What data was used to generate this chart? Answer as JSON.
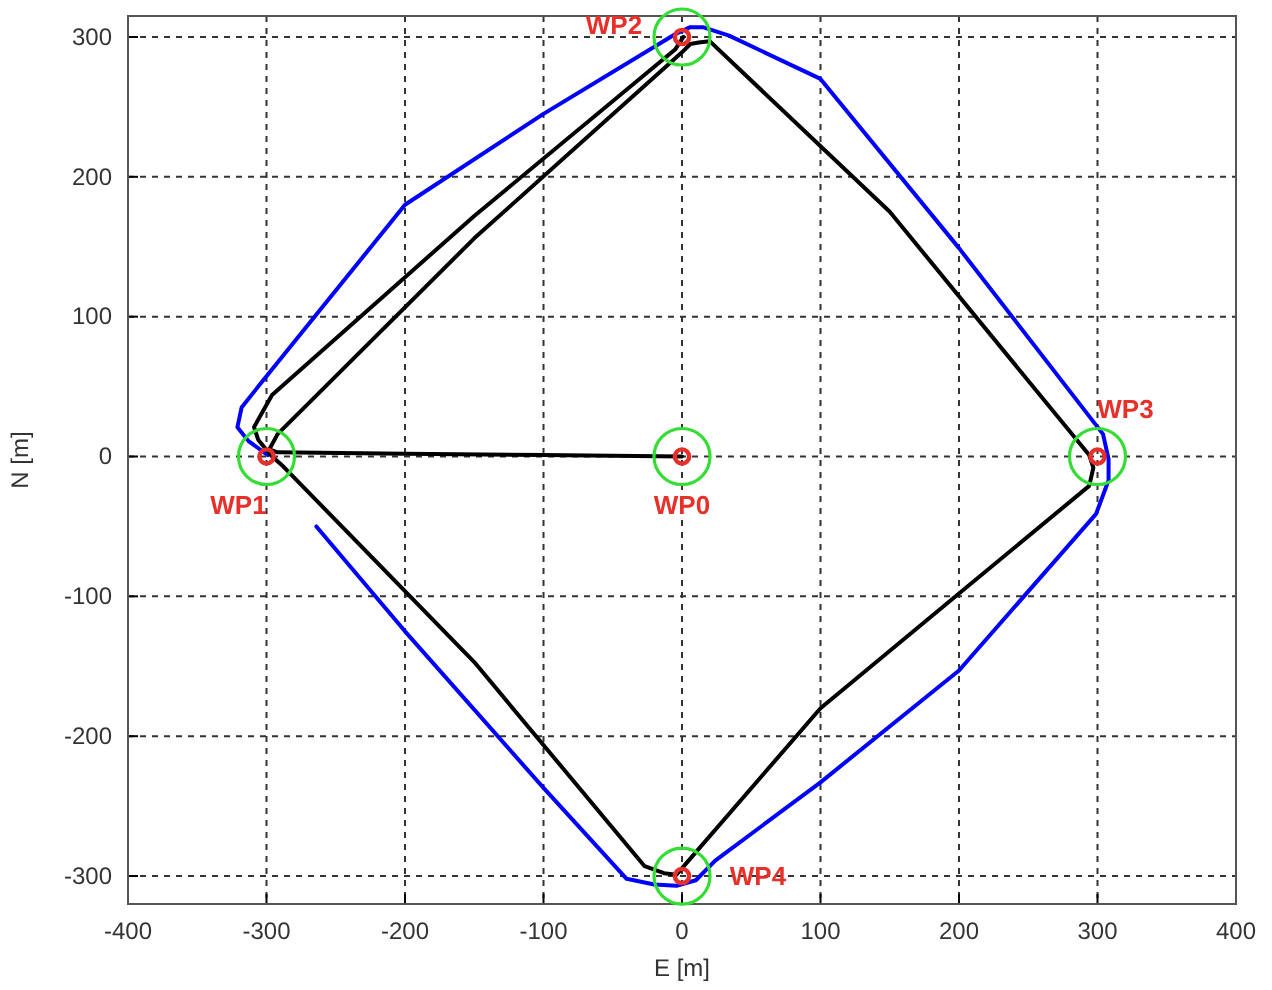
{
  "chart_data": {
    "type": "line",
    "xlabel": "E [m]",
    "ylabel": "N [m]",
    "xlim": [
      -400,
      400
    ],
    "ylim": [
      -320,
      315
    ],
    "xticks": [
      -400,
      -300,
      -200,
      -100,
      0,
      100,
      200,
      300,
      400
    ],
    "yticks": [
      -300,
      -200,
      -100,
      0,
      100,
      200,
      300
    ],
    "grid": true,
    "line_style": "solid",
    "series": [
      {
        "color": "#0000ff",
        "x": [
          -264,
          -200,
          -100,
          -40,
          -20,
          -4,
          10,
          24,
          100,
          200,
          299,
          308,
          308,
          304,
          200,
          100,
          34,
          15,
          6,
          -5,
          -100,
          -200,
          -306,
          -318,
          -321,
          -313,
          -299
        ],
        "values": [
          -50,
          -125,
          -237,
          -302,
          -306,
          -307,
          -303,
          -289,
          -233,
          -153,
          -41,
          -17,
          -2,
          16,
          149,
          270,
          301,
          307,
          307,
          302,
          245,
          180,
          50,
          35,
          21,
          11,
          1
        ]
      },
      {
        "color": "#000000",
        "x": [
          0,
          -100,
          -200,
          -292,
          -298,
          -292,
          -150,
          0,
          6,
          12,
          20,
          150,
          294,
          297,
          294,
          200,
          100,
          -4,
          -13,
          -27,
          -150,
          -288,
          -296,
          -306,
          -309,
          -296,
          -150,
          -5,
          1
        ],
        "values": [
          0,
          1,
          2,
          3,
          5,
          16,
          156,
          289,
          295,
          296,
          297,
          175,
          1,
          -8,
          -21,
          -98,
          -180,
          -299,
          -298,
          -293,
          -147,
          -7,
          0,
          12,
          21,
          44,
          172,
          291,
          300
        ]
      },
      {
        "type": "scatter",
        "color": "#e8302a",
        "marker": "circle",
        "x": [
          0,
          -300,
          0,
          300,
          0
        ],
        "values": [
          0,
          0,
          300,
          0,
          -300
        ]
      },
      {
        "type": "bubble",
        "color": "#33dd33",
        "x": [
          0,
          -300,
          0,
          300,
          0
        ],
        "values": [
          0,
          0,
          300,
          0,
          -300
        ],
        "sizes": [
          1,
          1,
          1,
          1,
          1
        ]
      }
    ],
    "annotations": [
      {
        "text": "WP0",
        "x": 0,
        "y": 0
      },
      {
        "text": "WP1",
        "x": -300,
        "y": 0
      },
      {
        "text": "WP2",
        "x": 0,
        "y": 300
      },
      {
        "text": "WP3",
        "x": 300,
        "y": 0
      },
      {
        "text": "WP4",
        "x": 0,
        "y": -300
      }
    ]
  }
}
